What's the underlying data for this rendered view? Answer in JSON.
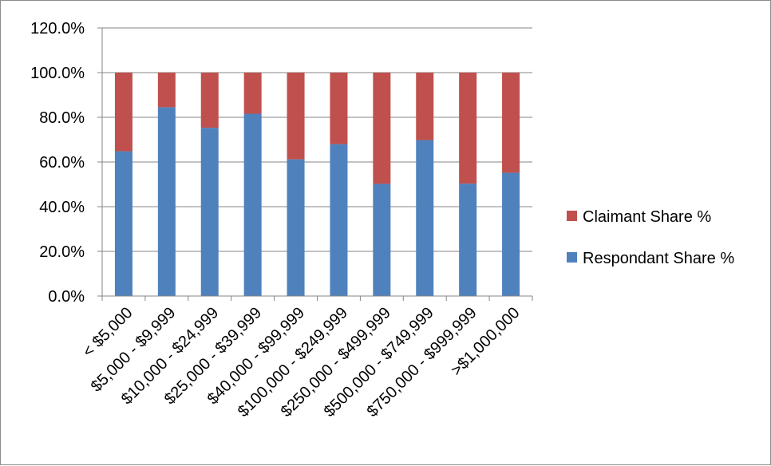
{
  "chart_data": {
    "type": "bar",
    "stacked": true,
    "categories": [
      "< $5,000",
      "$5,000 - $9,999",
      "$10,000 - $24,999",
      "$25,000 - $39,999",
      "$40,000 - $99,999",
      "$100,000 - $249,999",
      "$250,000 - $499,999",
      "$500,000 - $749,999",
      "$750,000 - $999,999",
      ">$1,000,000"
    ],
    "series": [
      {
        "name": "Respondant Share %",
        "color": "#4F81BD",
        "values": [
          64.8,
          84.5,
          75.3,
          81.6,
          61.2,
          68.0,
          50.2,
          69.8,
          50.3,
          55.2
        ]
      },
      {
        "name": "Claimant Share %",
        "color": "#C0504D",
        "values": [
          35.2,
          15.5,
          24.7,
          18.4,
          38.8,
          32.0,
          49.8,
          30.2,
          49.7,
          44.8
        ]
      }
    ],
    "ylim": [
      0,
      120
    ],
    "yticks": [
      "0.0%",
      "20.0%",
      "40.0%",
      "60.0%",
      "80.0%",
      "100.0%",
      "120.0%"
    ],
    "grid": true,
    "legend_position": "right"
  }
}
